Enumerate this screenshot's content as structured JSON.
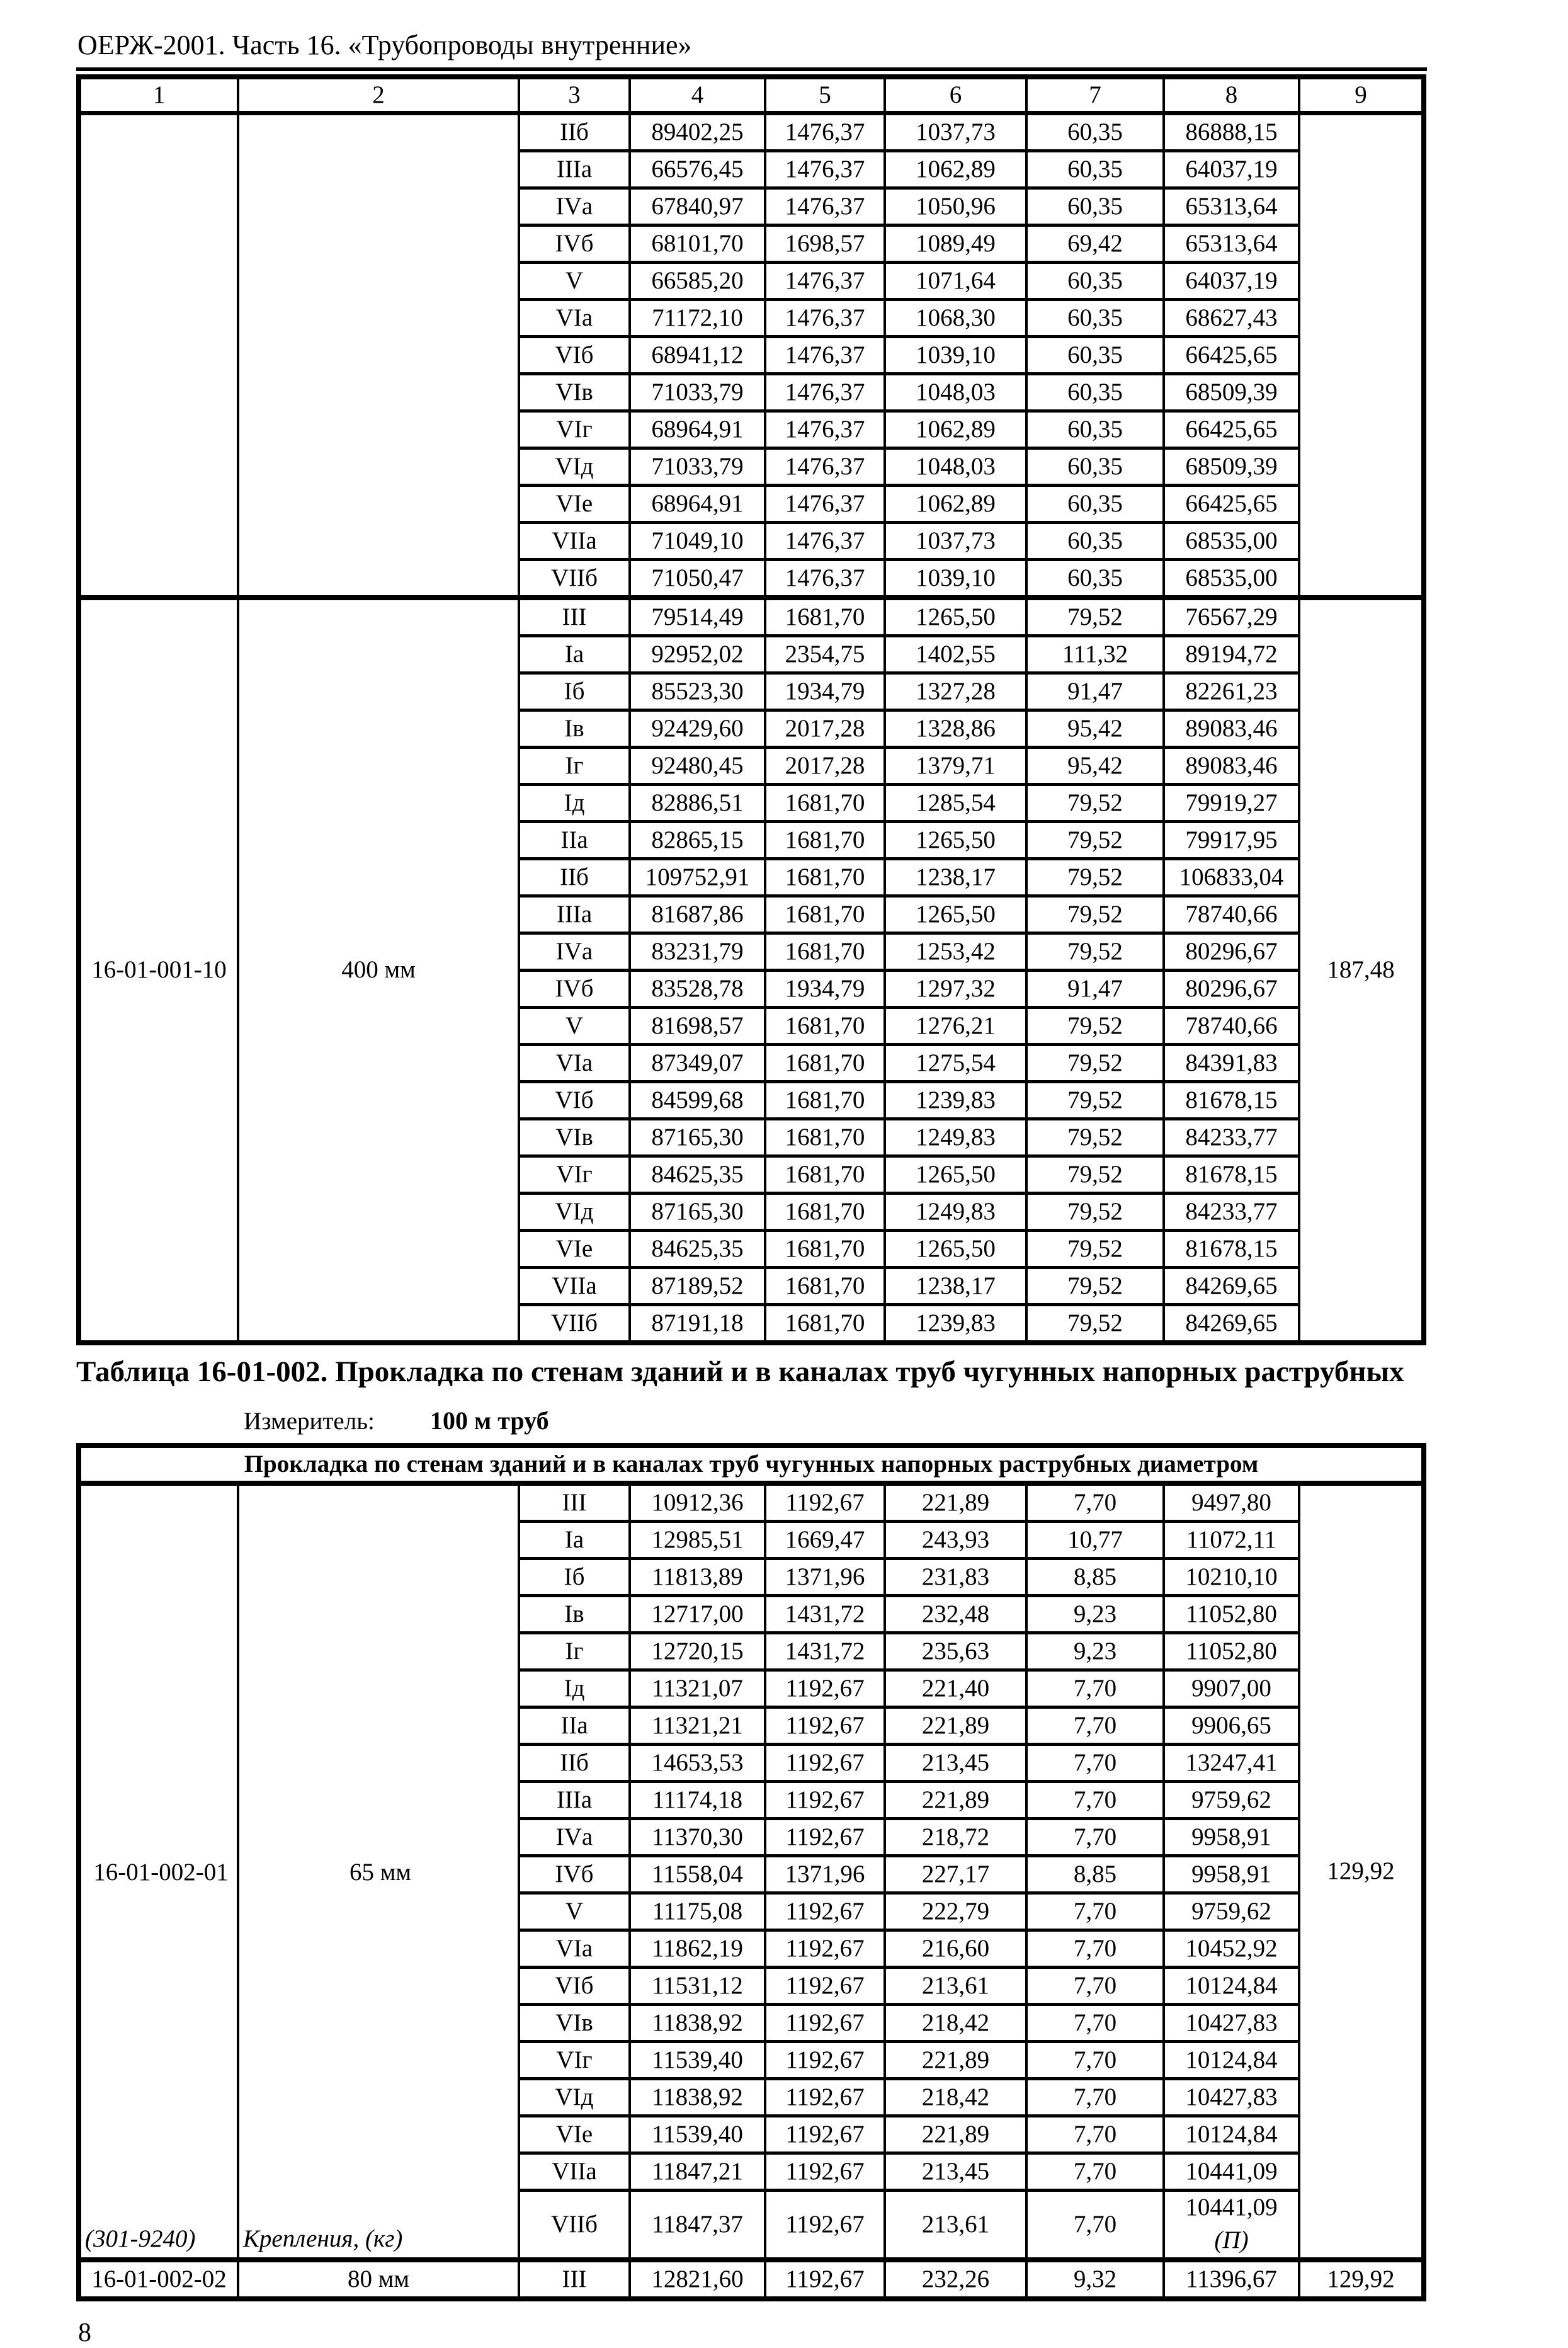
{
  "page": {
    "doc_title": "ОЕРЖ-2001. Часть 16. «Трубопроводы внутренние»",
    "page_number": "8"
  },
  "table": {
    "column_headers": [
      "1",
      "2",
      "3",
      "4",
      "5",
      "6",
      "7",
      "8",
      "9"
    ]
  },
  "continuation": {
    "rows": [
      {
        "grade": "IIб",
        "values": [
          "89402,25",
          "1476,37",
          "1037,73",
          "60,35",
          "86888,15"
        ]
      },
      {
        "grade": "IIIа",
        "values": [
          "66576,45",
          "1476,37",
          "1062,89",
          "60,35",
          "64037,19"
        ]
      },
      {
        "grade": "IVа",
        "values": [
          "67840,97",
          "1476,37",
          "1050,96",
          "60,35",
          "65313,64"
        ]
      },
      {
        "grade": "IVб",
        "values": [
          "68101,70",
          "1698,57",
          "1089,49",
          "69,42",
          "65313,64"
        ]
      },
      {
        "grade": "V",
        "values": [
          "66585,20",
          "1476,37",
          "1071,64",
          "60,35",
          "64037,19"
        ]
      },
      {
        "grade": "VIа",
        "values": [
          "71172,10",
          "1476,37",
          "1068,30",
          "60,35",
          "68627,43"
        ]
      },
      {
        "grade": "VIб",
        "values": [
          "68941,12",
          "1476,37",
          "1039,10",
          "60,35",
          "66425,65"
        ]
      },
      {
        "grade": "VIв",
        "values": [
          "71033,79",
          "1476,37",
          "1048,03",
          "60,35",
          "68509,39"
        ]
      },
      {
        "grade": "VIг",
        "values": [
          "68964,91",
          "1476,37",
          "1062,89",
          "60,35",
          "66425,65"
        ]
      },
      {
        "grade": "VIд",
        "values": [
          "71033,79",
          "1476,37",
          "1048,03",
          "60,35",
          "68509,39"
        ]
      },
      {
        "grade": "VIе",
        "values": [
          "68964,91",
          "1476,37",
          "1062,89",
          "60,35",
          "66425,65"
        ]
      },
      {
        "grade": "VIIа",
        "values": [
          "71049,10",
          "1476,37",
          "1037,73",
          "60,35",
          "68535,00"
        ]
      },
      {
        "grade": "VIIб",
        "values": [
          "71050,47",
          "1476,37",
          "1039,10",
          "60,35",
          "68535,00"
        ]
      }
    ]
  },
  "entry1": {
    "code": "16-01-001-10",
    "name": "400 мм",
    "main": {
      "grade": "III",
      "values": [
        "79514,49",
        "1681,70",
        "1265,50",
        "79,52",
        "76567,29"
      ],
      "extra": "187,48"
    },
    "rows": [
      {
        "grade": "Iа",
        "values": [
          "92952,02",
          "2354,75",
          "1402,55",
          "111,32",
          "89194,72"
        ]
      },
      {
        "grade": "Iб",
        "values": [
          "85523,30",
          "1934,79",
          "1327,28",
          "91,47",
          "82261,23"
        ]
      },
      {
        "grade": "Iв",
        "values": [
          "92429,60",
          "2017,28",
          "1328,86",
          "95,42",
          "89083,46"
        ]
      },
      {
        "grade": "Iг",
        "values": [
          "92480,45",
          "2017,28",
          "1379,71",
          "95,42",
          "89083,46"
        ]
      },
      {
        "grade": "Iд",
        "values": [
          "82886,51",
          "1681,70",
          "1285,54",
          "79,52",
          "79919,27"
        ]
      },
      {
        "grade": "IIа",
        "values": [
          "82865,15",
          "1681,70",
          "1265,50",
          "79,52",
          "79917,95"
        ]
      },
      {
        "grade": "IIб",
        "values": [
          "109752,91",
          "1681,70",
          "1238,17",
          "79,52",
          "106833,04"
        ]
      },
      {
        "grade": "IIIа",
        "values": [
          "81687,86",
          "1681,70",
          "1265,50",
          "79,52",
          "78740,66"
        ]
      },
      {
        "grade": "IVа",
        "values": [
          "83231,79",
          "1681,70",
          "1253,42",
          "79,52",
          "80296,67"
        ]
      },
      {
        "grade": "IVб",
        "values": [
          "83528,78",
          "1934,79",
          "1297,32",
          "91,47",
          "80296,67"
        ]
      },
      {
        "grade": "V",
        "values": [
          "81698,57",
          "1681,70",
          "1276,21",
          "79,52",
          "78740,66"
        ]
      },
      {
        "grade": "VIа",
        "values": [
          "87349,07",
          "1681,70",
          "1275,54",
          "79,52",
          "84391,83"
        ]
      },
      {
        "grade": "VIб",
        "values": [
          "84599,68",
          "1681,70",
          "1239,83",
          "79,52",
          "81678,15"
        ]
      },
      {
        "grade": "VIв",
        "values": [
          "87165,30",
          "1681,70",
          "1249,83",
          "79,52",
          "84233,77"
        ]
      },
      {
        "grade": "VIг",
        "values": [
          "84625,35",
          "1681,70",
          "1265,50",
          "79,52",
          "81678,15"
        ]
      },
      {
        "grade": "VIд",
        "values": [
          "87165,30",
          "1681,70",
          "1249,83",
          "79,52",
          "84233,77"
        ]
      },
      {
        "grade": "VIе",
        "values": [
          "84625,35",
          "1681,70",
          "1265,50",
          "79,52",
          "81678,15"
        ]
      },
      {
        "grade": "VIIа",
        "values": [
          "87189,52",
          "1681,70",
          "1238,17",
          "79,52",
          "84269,65"
        ]
      },
      {
        "grade": "VIIб",
        "values": [
          "87191,18",
          "1681,70",
          "1239,83",
          "79,52",
          "84269,65"
        ]
      }
    ]
  },
  "table2": {
    "heading": "Таблица 16-01-002. Прокладка по стенам зданий и в каналах труб чугунных напорных раструбных",
    "measurer_label": "Измеритель:",
    "measurer_value": "100 м труб",
    "span_header": "Прокладка по стенам зданий и в каналах труб чугунных напорных раструбных диаметром"
  },
  "entry2": {
    "code": "16-01-002-01",
    "name": "65 мм",
    "note_code": "(301-9240)",
    "note_name": "Крепления, (кг)",
    "main": {
      "grade": "III",
      "values": [
        "10912,36",
        "1192,67",
        "221,89",
        "7,70",
        "9497,80"
      ],
      "extra": "129,92"
    },
    "rows": [
      {
        "grade": "Iа",
        "values": [
          "12985,51",
          "1669,47",
          "243,93",
          "10,77",
          "11072,11"
        ]
      },
      {
        "grade": "Iб",
        "values": [
          "11813,89",
          "1371,96",
          "231,83",
          "8,85",
          "10210,10"
        ]
      },
      {
        "grade": "Iв",
        "values": [
          "12717,00",
          "1431,72",
          "232,48",
          "9,23",
          "11052,80"
        ]
      },
      {
        "grade": "Iг",
        "values": [
          "12720,15",
          "1431,72",
          "235,63",
          "9,23",
          "11052,80"
        ]
      },
      {
        "grade": "Iд",
        "values": [
          "11321,07",
          "1192,67",
          "221,40",
          "7,70",
          "9907,00"
        ]
      },
      {
        "grade": "IIа",
        "values": [
          "11321,21",
          "1192,67",
          "221,89",
          "7,70",
          "9906,65"
        ]
      },
      {
        "grade": "IIб",
        "values": [
          "14653,53",
          "1192,67",
          "213,45",
          "7,70",
          "13247,41"
        ]
      },
      {
        "grade": "IIIа",
        "values": [
          "11174,18",
          "1192,67",
          "221,89",
          "7,70",
          "9759,62"
        ]
      },
      {
        "grade": "IVа",
        "values": [
          "11370,30",
          "1192,67",
          "218,72",
          "7,70",
          "9958,91"
        ]
      },
      {
        "grade": "IVб",
        "values": [
          "11558,04",
          "1371,96",
          "227,17",
          "8,85",
          "9958,91"
        ]
      },
      {
        "grade": "V",
        "values": [
          "11175,08",
          "1192,67",
          "222,79",
          "7,70",
          "9759,62"
        ]
      },
      {
        "grade": "VIа",
        "values": [
          "11862,19",
          "1192,67",
          "216,60",
          "7,70",
          "10452,92"
        ]
      },
      {
        "grade": "VIб",
        "values": [
          "11531,12",
          "1192,67",
          "213,61",
          "7,70",
          "10124,84"
        ]
      },
      {
        "grade": "VIв",
        "values": [
          "11838,92",
          "1192,67",
          "218,42",
          "7,70",
          "10427,83"
        ]
      },
      {
        "grade": "VIг",
        "values": [
          "11539,40",
          "1192,67",
          "221,89",
          "7,70",
          "10124,84"
        ]
      },
      {
        "grade": "VIд",
        "values": [
          "11838,92",
          "1192,67",
          "218,42",
          "7,70",
          "10427,83"
        ]
      },
      {
        "grade": "VIе",
        "values": [
          "11539,40",
          "1192,67",
          "221,89",
          "7,70",
          "10124,84"
        ]
      },
      {
        "grade": "VIIа",
        "values": [
          "11847,21",
          "1192,67",
          "213,45",
          "7,70",
          "10441,09"
        ]
      }
    ],
    "last_row": {
      "grade": "VIIб",
      "values": [
        "11847,37",
        "1192,67",
        "213,61",
        "7,70",
        "10441,09"
      ],
      "note": "(П)"
    }
  },
  "entry3": {
    "code": "16-01-002-02",
    "name": "80 мм",
    "main": {
      "grade": "III",
      "values": [
        "12821,60",
        "1192,67",
        "232,26",
        "9,32",
        "11396,67"
      ],
      "extra": "129,92"
    }
  }
}
